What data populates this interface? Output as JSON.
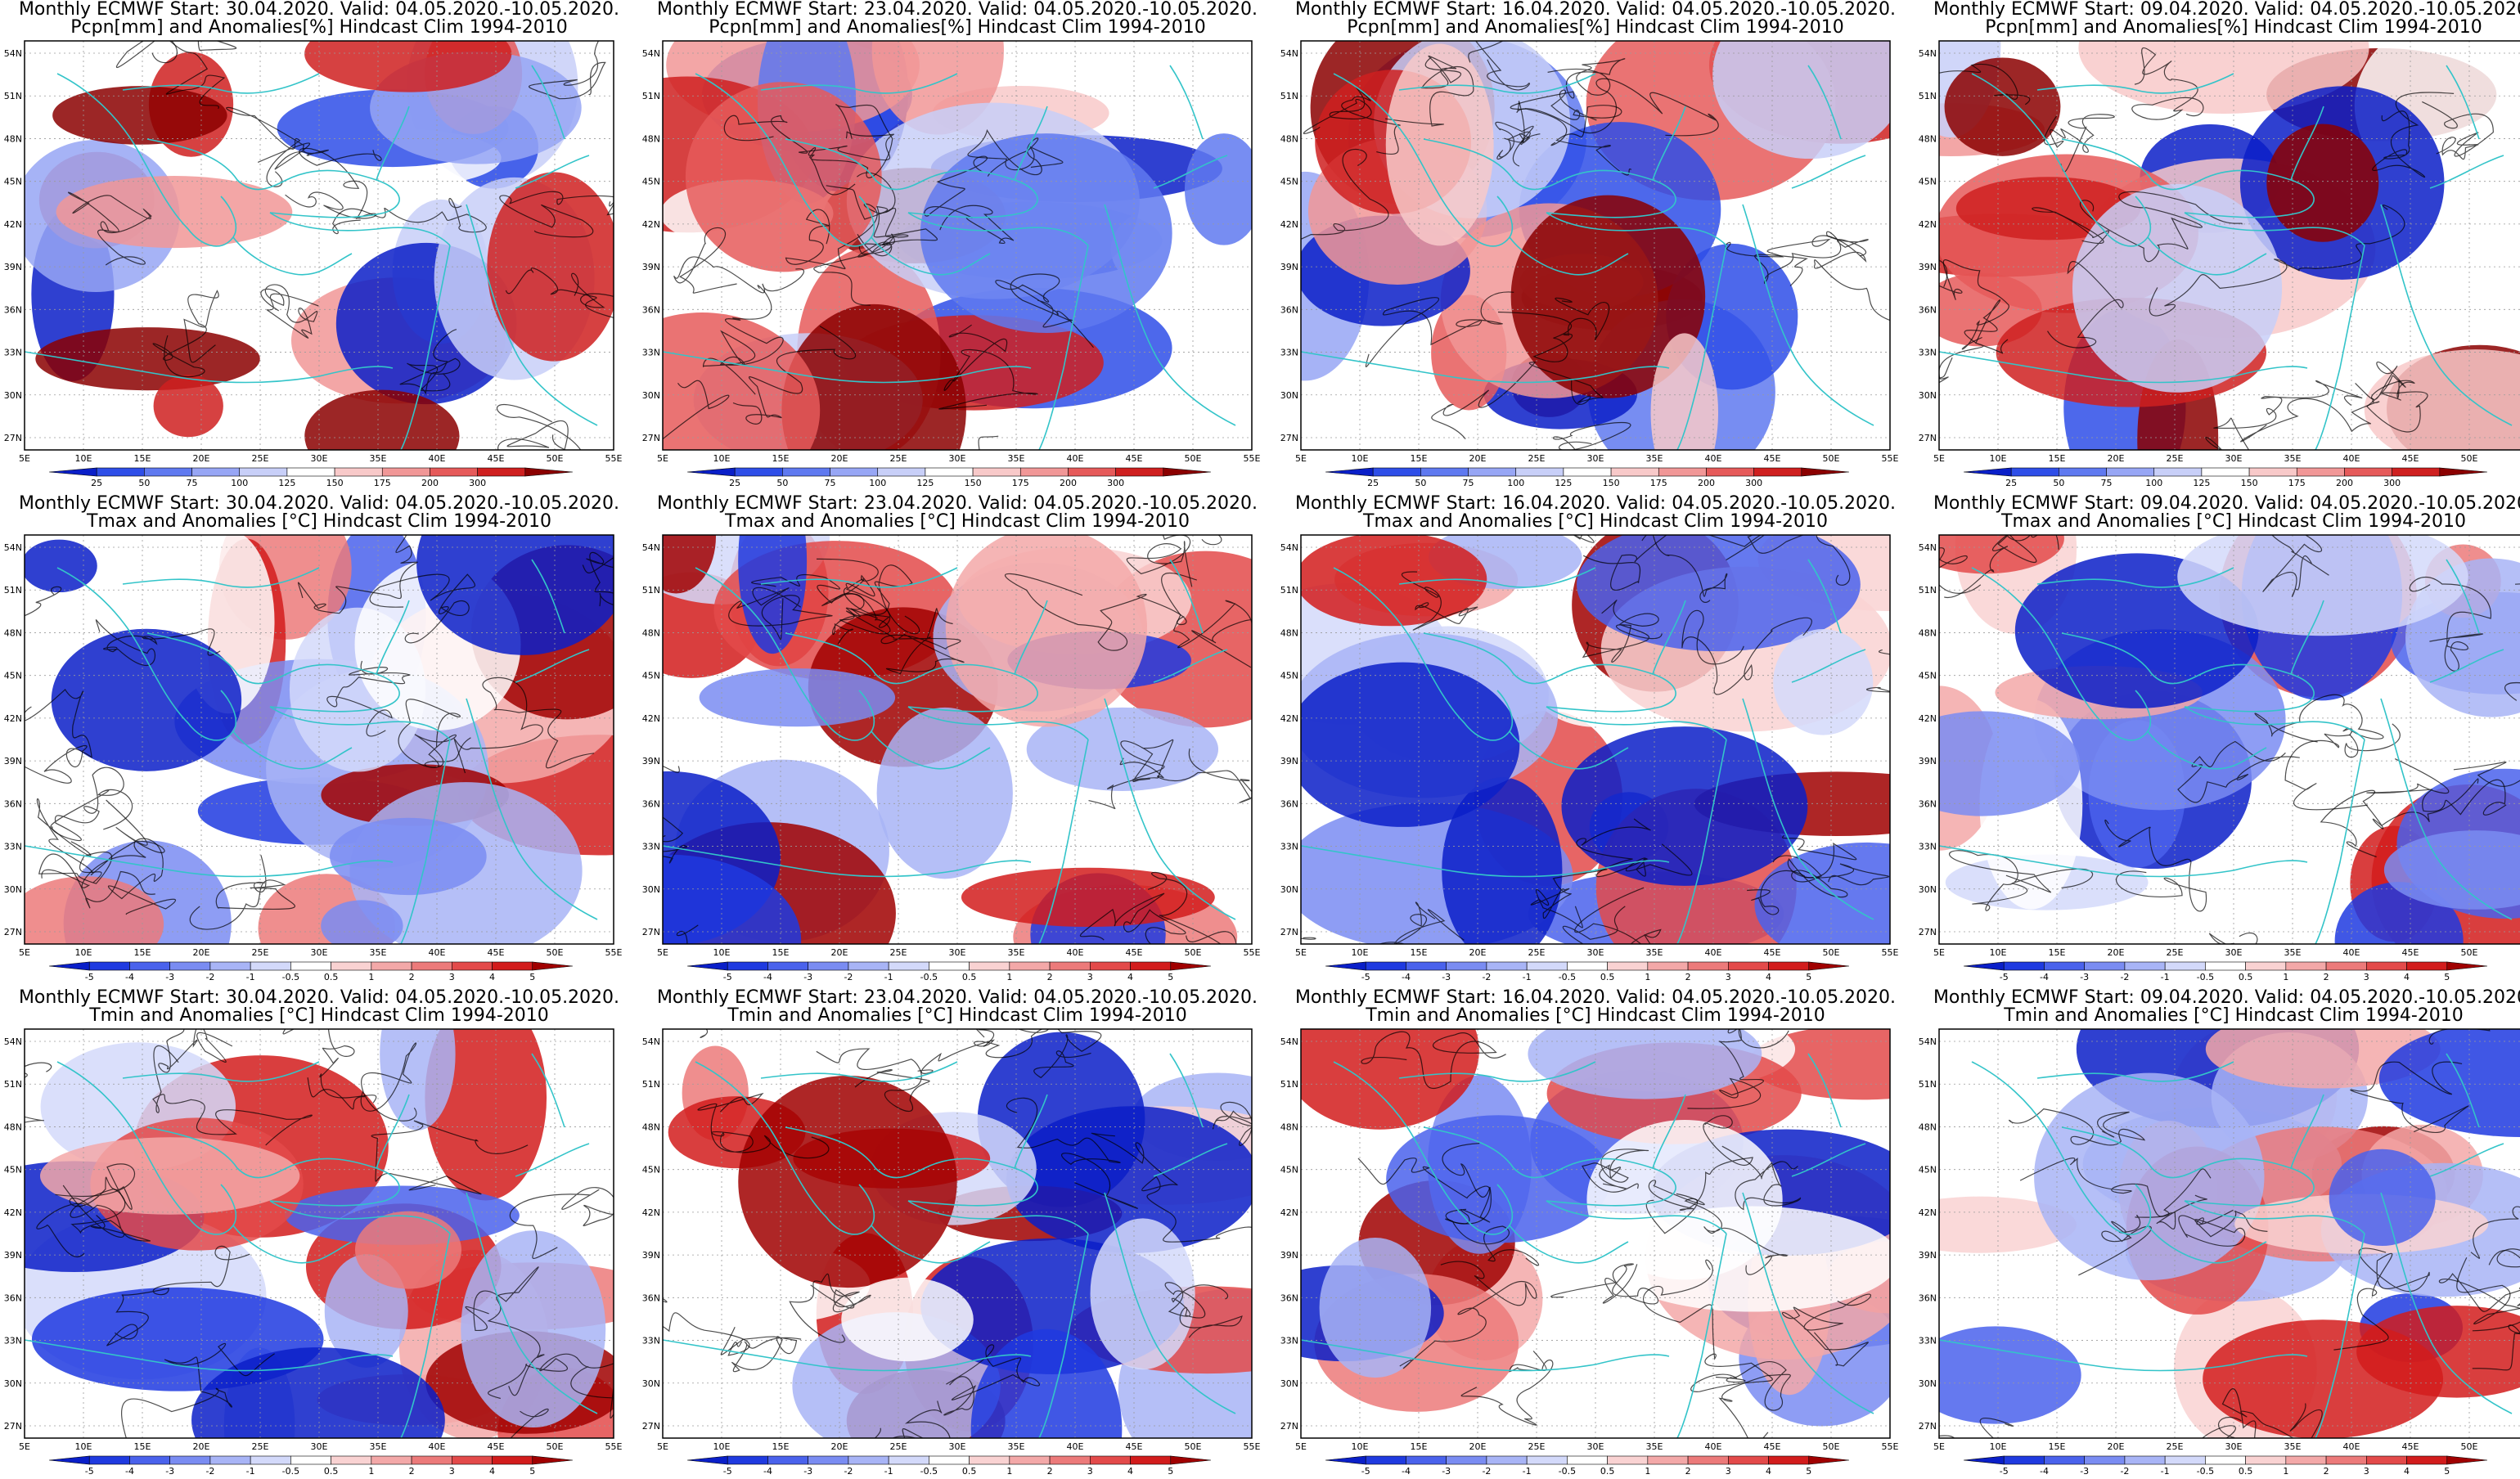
{
  "panels": [
    {
      "id": "p1",
      "row": 0,
      "col": 0,
      "line1": "Monthly ECMWF Start: 30.04.2020. Valid: 04.05.2020.-10.05.2020.",
      "line2": "Pcpn[mm] and Anomalies[%] Hindcast Clim 1994-2010",
      "variable": "precip"
    },
    {
      "id": "p2",
      "row": 0,
      "col": 1,
      "line1": "Monthly ECMWF Start: 23.04.2020. Valid: 04.05.2020.-10.05.2020.",
      "line2": "Pcpn[mm] and Anomalies[%] Hindcast Clim 1994-2010",
      "variable": "precip"
    },
    {
      "id": "p3",
      "row": 0,
      "col": 2,
      "line1": "Monthly ECMWF Start: 16.04.2020. Valid: 04.05.2020.-10.05.2020.",
      "line2": "Pcpn[mm] and Anomalies[%] Hindcast Clim 1994-2010",
      "variable": "precip"
    },
    {
      "id": "p4",
      "row": 0,
      "col": 3,
      "line1": "Monthly ECMWF Start: 09.04.2020. Valid: 04.05.2020.-10.05.2020.",
      "line2": "Pcpn[mm] and Anomalies[%] Hindcast Clim 1994-2010",
      "variable": "precip"
    },
    {
      "id": "p5",
      "row": 1,
      "col": 0,
      "line1": "Monthly ECMWF Start: 30.04.2020. Valid: 04.05.2020.-10.05.2020.",
      "line2": "Tmax and Anomalies [°C] Hindcast Clim 1994-2010",
      "variable": "temp"
    },
    {
      "id": "p6",
      "row": 1,
      "col": 1,
      "line1": "Monthly ECMWF Start: 23.04.2020. Valid: 04.05.2020.-10.05.2020.",
      "line2": "Tmax and Anomalies [°C] Hindcast Clim 1994-2010",
      "variable": "temp"
    },
    {
      "id": "p7",
      "row": 1,
      "col": 2,
      "line1": "Monthly ECMWF Start: 16.04.2020. Valid: 04.05.2020.-10.05.2020.",
      "line2": "Tmax and Anomalies [°C] Hindcast Clim 1994-2010",
      "variable": "temp"
    },
    {
      "id": "p8",
      "row": 1,
      "col": 3,
      "line1": "Monthly ECMWF Start: 09.04.2020. Valid: 04.05.2020.-10.05.2020.",
      "line2": "Tmax and Anomalies [°C] Hindcast Clim 1994-2010",
      "variable": "temp"
    },
    {
      "id": "p9",
      "row": 2,
      "col": 0,
      "line1": "Monthly ECMWF Start: 30.04.2020. Valid: 04.05.2020.-10.05.2020.",
      "line2": "Tmin and Anomalies [°C] Hindcast Clim 1994-2010",
      "variable": "temp"
    },
    {
      "id": "p10",
      "row": 2,
      "col": 1,
      "line1": "Monthly ECMWF Start: 23.04.2020. Valid: 04.05.2020.-10.05.2020.",
      "line2": "Tmin and Anomalies [°C] Hindcast Clim 1994-2010",
      "variable": "temp"
    },
    {
      "id": "p11",
      "row": 2,
      "col": 2,
      "line1": "Monthly ECMWF Start: 16.04.2020. Valid: 04.05.2020.-10.05.2020.",
      "line2": "Tmin and Anomalies [°C] Hindcast Clim 1994-2010",
      "variable": "temp"
    },
    {
      "id": "p12",
      "row": 2,
      "col": 3,
      "line1": "Monthly ECMWF Start: 09.04.2020. Valid: 04.05.2020.-10.05.2020.",
      "line2": "Tmin and Anomalies [°C] Hindcast Clim 1994-2010",
      "variable": "temp"
    }
  ],
  "axes": {
    "lon_labels": [
      "5E",
      "10E",
      "15E",
      "20E",
      "25E",
      "30E",
      "35E",
      "40E",
      "45E",
      "50E",
      "55E"
    ],
    "lat_labels": [
      "54N",
      "51N",
      "48N",
      "45N",
      "42N",
      "39N",
      "36N",
      "33N",
      "30N",
      "27N"
    ]
  },
  "colorbars": {
    "precip": {
      "labels": [
        "25",
        "50",
        "75",
        "100",
        "125",
        "150",
        "175",
        "200",
        "300"
      ],
      "colors": [
        "#0a1fc8",
        "#2e4ee8",
        "#5f79f0",
        "#97a6f5",
        "#c8cff8",
        "#ffffff",
        "#f8c9c9",
        "#f19797",
        "#e65a5a",
        "#cf2020",
        "#8b0000"
      ]
    },
    "temp": {
      "labels": [
        "-5",
        "-4",
        "-3",
        "-2",
        "-1",
        "-0.5",
        "0.5",
        "1",
        "2",
        "3",
        "4",
        "5"
      ],
      "colors": [
        "#0a1fc8",
        "#1f3ae0",
        "#4a62ec",
        "#7a8cf2",
        "#a8b4f6",
        "#d3d9fa",
        "#ffffff",
        "#f9d2d2",
        "#f3a8a8",
        "#ec7a7a",
        "#e34a4a",
        "#d21c1c",
        "#a00000"
      ]
    }
  },
  "colors": {
    "coastline": "#33c4c9",
    "contour": "#000000",
    "grid": "#9a9a9a"
  }
}
